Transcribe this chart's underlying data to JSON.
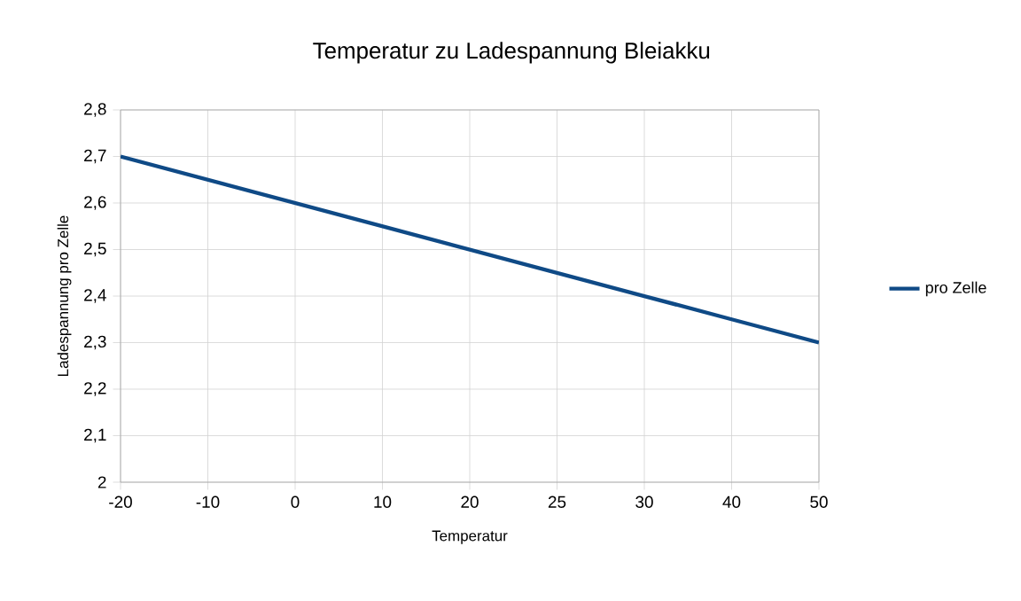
{
  "chart_data": {
    "type": "line",
    "title": "Temperatur zu Ladespannung Bleiakku",
    "xlabel": "Temperatur",
    "ylabel": "Ladespannung pro Zelle",
    "categories": [
      "-20",
      "-10",
      "0",
      "10",
      "20",
      "25",
      "30",
      "40",
      "50"
    ],
    "series": [
      {
        "name": "pro Zelle",
        "color": "#0f4a86",
        "values": [
          2.7,
          2.65,
          2.6,
          2.55,
          2.5,
          2.45,
          2.4,
          2.35,
          2.3
        ]
      }
    ],
    "ylim": [
      2,
      2.8
    ],
    "yticks": [
      2,
      {
        "value": 2.1,
        "label": "2,1"
      },
      {
        "value": 2.2,
        "label": "2,2"
      },
      {
        "value": 2.3,
        "label": "2,3"
      },
      {
        "value": 2.4,
        "label": "2,4"
      },
      {
        "value": 2.5,
        "label": "2,5"
      },
      {
        "value": 2.6,
        "label": "2,6"
      },
      {
        "value": 2.7,
        "label": "2,7"
      },
      {
        "value": 2.8,
        "label": "2,8"
      }
    ],
    "grid": true,
    "legend": "right",
    "marker": "none",
    "line_style": "solid"
  }
}
